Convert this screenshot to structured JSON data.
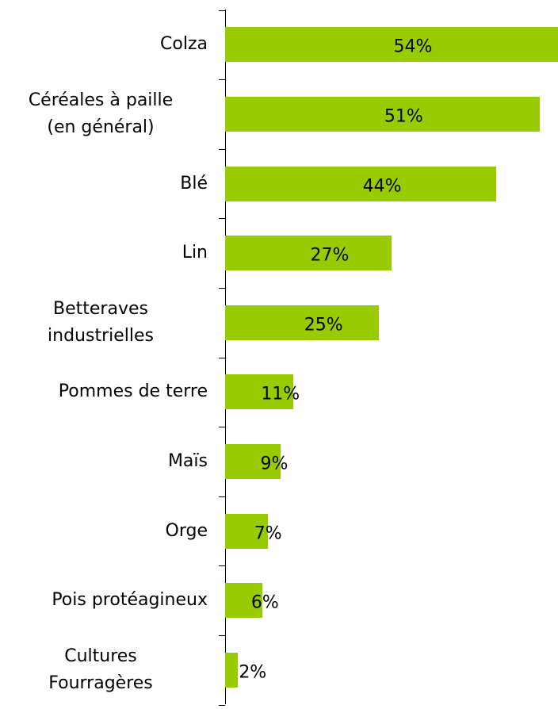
{
  "chart_data": {
    "type": "bar",
    "orientation": "horizontal",
    "categories": [
      "Colza",
      "Céréales à paille\n(en général)",
      "Blé",
      "Lin",
      "Betteraves\nindustrielles",
      "Pommes de terre",
      "Maïs",
      "Orge",
      "Pois protéagineux",
      "Cultures\nFourragères"
    ],
    "values": [
      54,
      51,
      44,
      27,
      25,
      11,
      9,
      7,
      6,
      2
    ],
    "value_labels": [
      "54%",
      "51%",
      "44%",
      "27%",
      "25%",
      "11%",
      "9%",
      "7%",
      "6%",
      "2%"
    ],
    "color": "#99cc00"
  }
}
